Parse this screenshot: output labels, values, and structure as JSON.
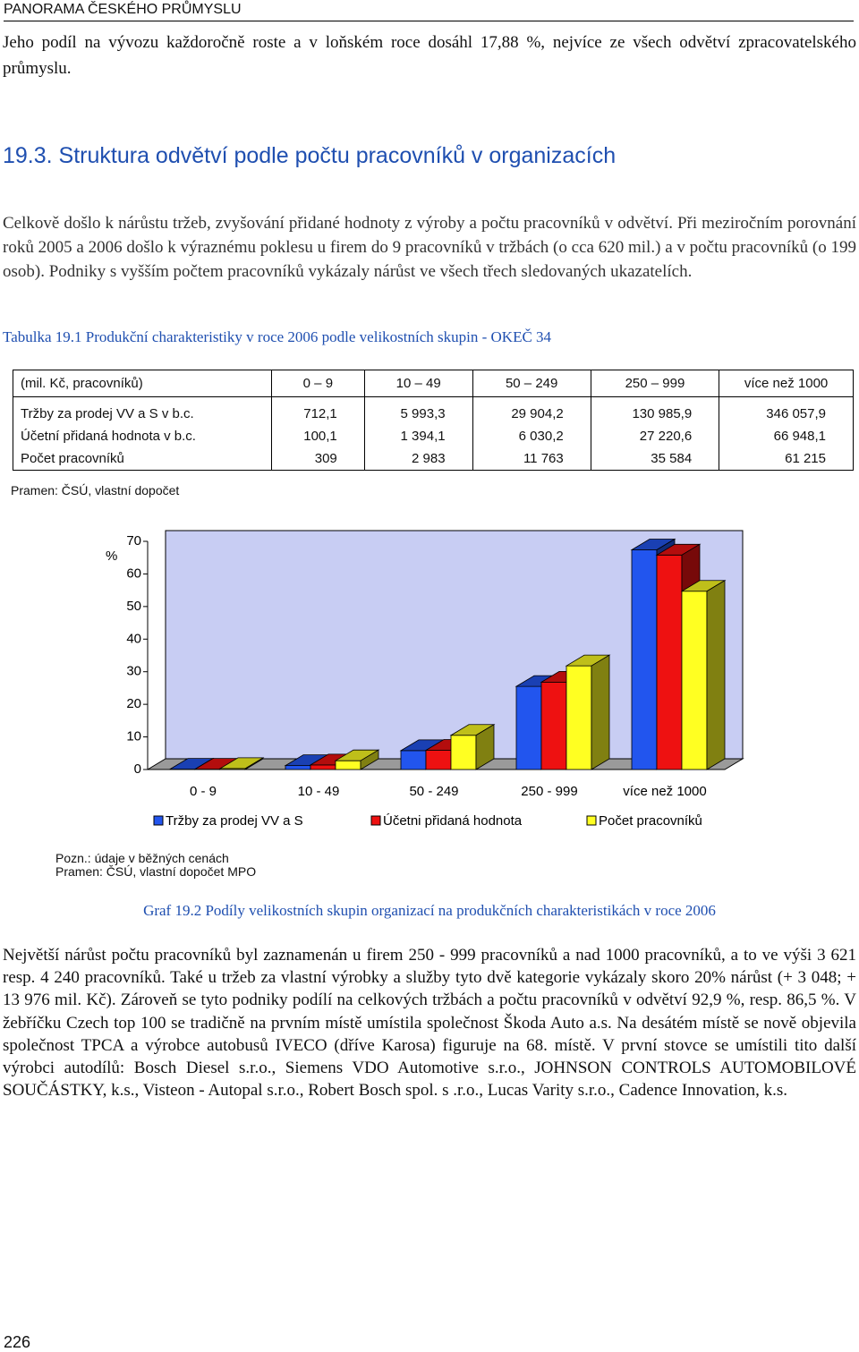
{
  "header": {
    "running_title": "PANORAMA ČESKÉHO PRŮMYSLU"
  },
  "intro": "Jeho podíl na vývozu každoročně roste a v loňském roce dosáhl 17,88 %, nejvíce ze všech odvětví zpracovatelského průmyslu.",
  "section_title": "19.3. Struktura odvětví podle počtu pracovníků v organizacích",
  "paragraph": "Celkově došlo k nárůstu tržeb, zvyšování přidané hodnoty z výroby a počtu pracovníků v odvětví. Při meziročním porovnání roků 2005 a 2006 došlo k výraznému poklesu u firem do 9 pracovníků v tržbách (o cca 620 mil.) a v počtu pracovníků (o 199 osob). Podniky s vyšším počtem pracovníků vykázaly nárůst ve všech třech sledovaných ukazatelích.",
  "table": {
    "caption": "Tabulka 19.1 Produkční charakteristiky v roce 2006 podle velikostních skupin - OKEČ 34",
    "header": [
      "(mil. Kč, pracovníků)",
      "0 – 9",
      "10 – 49",
      "50 – 249",
      "250 – 999",
      "více než 1000"
    ],
    "rows": [
      [
        "Tržby  za prodej VV a S v b.c.",
        "712,1",
        "5 993,3",
        "29 904,2",
        "130 985,9",
        "346 057,9"
      ],
      [
        "Účetní přidaná hodnota v b.c.",
        "100,1",
        "1 394,1",
        "6 030,2",
        "27 220,6",
        "66 948,1"
      ],
      [
        "Počet pracovníků",
        "309",
        "2 983",
        "11 763",
        "35 584",
        "61 215"
      ]
    ],
    "source": "Pramen: ČSÚ, vlastní dopočet"
  },
  "chart_data": {
    "type": "bar3d",
    "y_label": "%",
    "categories": [
      "0 - 9",
      "10 - 49",
      "50 - 249",
      "250 - 999",
      "více než 1000"
    ],
    "series": [
      {
        "name": "Tržby za prodej VV a S",
        "color": "#2255ee",
        "values": [
          0.1,
          1.2,
          5.8,
          25.5,
          67.4
        ]
      },
      {
        "name": "Účetni přidaná hodnota",
        "color": "#ee1111",
        "values": [
          0.1,
          1.4,
          5.9,
          26.8,
          65.8
        ]
      },
      {
        "name": "Počet pracovníků",
        "color": "#ffff22",
        "values": [
          0.3,
          2.7,
          10.5,
          31.8,
          54.7
        ]
      }
    ],
    "ylim": [
      0,
      70
    ],
    "yticks": [
      0,
      10,
      20,
      30,
      40,
      50,
      60,
      70
    ]
  },
  "notes": [
    "Pozn.: údaje v běžných cenách",
    "Pramen: ČSÚ, vlastní dopočet MPO"
  ],
  "figure_caption": "Graf 19.2 Podíly velikostních skupin organizací na produkčních charakteristikách v roce 2006",
  "body": "Největší nárůst počtu pracovníků byl zaznamenán u firem 250 - 999 pracovníků a nad 1000 pracovníků, a to ve výši 3 621 resp. 4 240 pracovníků. Také u tržeb za vlastní výrobky a služby tyto dvě kategorie vykázaly skoro 20% nárůst (+ 3 048; + 13 976 mil. Kč). Zároveň se tyto podniky podílí na celkových tržbách a počtu pracovníků v odvětví 92,9 %, resp. 86,5 %. V žebříčku Czech top 100 se tradičně na prvním místě umístila společnost Škoda Auto a.s. Na desátém místě se nově objevila společnost TPCA a výrobce autobusů IVECO (dříve Karosa) figuruje na 68. místě. V první stovce se umístili tito další výrobci autodílů: Bosch Diesel s.r.o., Siemens VDO Automotive s.r.o., JOHNSON CONTROLS AUTOMOBILOVÉ SOUČÁSTKY, k.s., Visteon - Autopal s.r.o., Robert Bosch spol. s .r.o., Lucas Varity s.r.o., Cadence Innovation, k.s.",
  "page_number": "226"
}
